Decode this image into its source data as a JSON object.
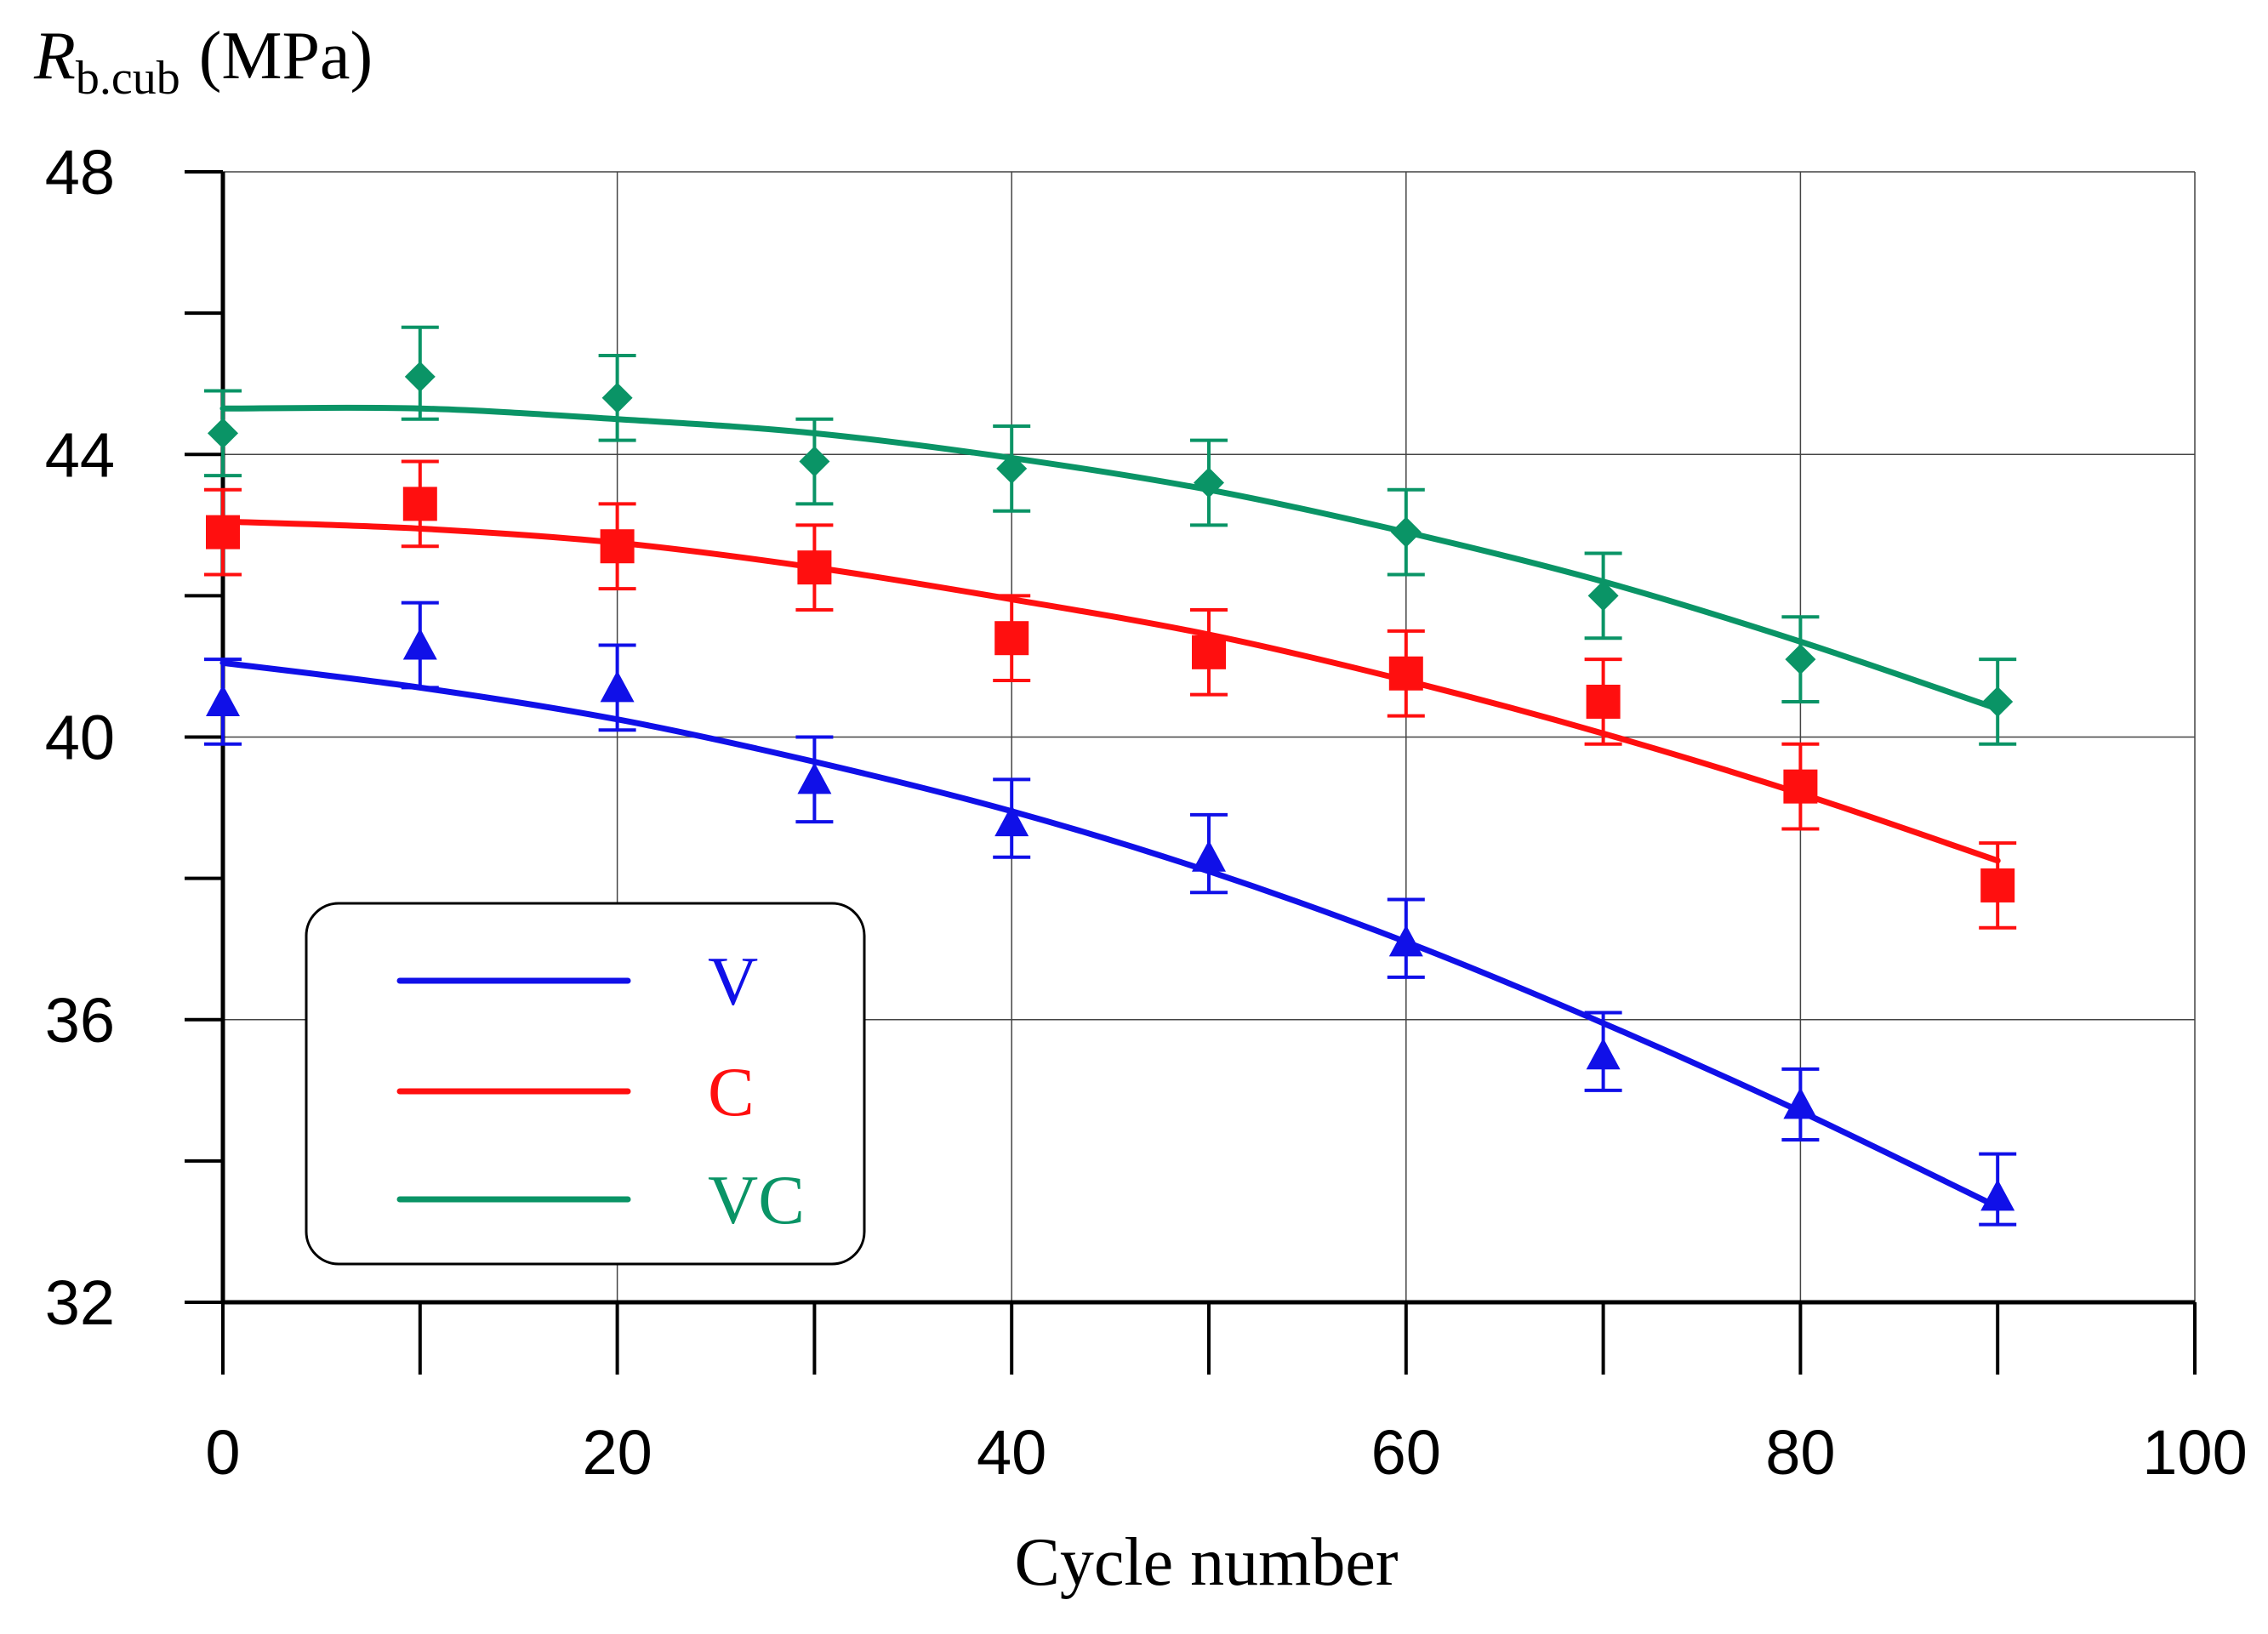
{
  "chart_data": {
    "type": "line",
    "title": "",
    "ylabel": {
      "symbol": "R",
      "subscript": "b.cub",
      "unit": "(MPa)"
    },
    "xlabel": "Cycle number",
    "xlim": [
      0,
      100
    ],
    "ylim": [
      32,
      48
    ],
    "x_ticks": [
      "0",
      "20",
      "40",
      "60",
      "80",
      "100"
    ],
    "y_ticks": [
      "32",
      "36",
      "40",
      "44",
      "48"
    ],
    "grid": true,
    "legend_position": "bottom-left",
    "series": [
      {
        "name": "V",
        "color": "#1010e8",
        "marker": "triangle",
        "x": [
          0,
          10,
          20,
          30,
          40,
          50,
          60,
          70,
          80,
          90
        ],
        "values": [
          40.5,
          41.3,
          40.7,
          39.4,
          38.8,
          38.3,
          37.1,
          35.5,
          34.8,
          33.5
        ],
        "error_low": [
          39.9,
          40.7,
          40.1,
          38.8,
          38.3,
          37.8,
          36.6,
          35.0,
          34.3,
          33.1
        ],
        "error_high": [
          41.1,
          41.9,
          41.3,
          40.0,
          39.4,
          38.9,
          37.7,
          36.1,
          35.3,
          34.1
        ],
        "fit": [
          41.05,
          40.7,
          40.25,
          39.65,
          38.95,
          38.1,
          37.1,
          35.95,
          34.7,
          33.35
        ]
      },
      {
        "name": "C",
        "color": "#ff0f0f",
        "marker": "square",
        "x": [
          0,
          10,
          20,
          30,
          40,
          50,
          60,
          70,
          80,
          90
        ],
        "values": [
          42.9,
          43.3,
          42.7,
          42.4,
          41.4,
          41.2,
          40.9,
          40.5,
          39.3,
          37.9
        ],
        "error_low": [
          42.3,
          42.7,
          42.1,
          41.8,
          40.8,
          40.6,
          40.3,
          39.9,
          38.7,
          37.3
        ],
        "error_high": [
          43.5,
          43.9,
          43.3,
          43.0,
          42.0,
          41.8,
          41.5,
          41.1,
          39.9,
          38.5
        ],
        "fit": [
          43.05,
          42.95,
          42.75,
          42.4,
          41.95,
          41.45,
          40.8,
          40.05,
          39.2,
          38.25
        ]
      },
      {
        "name": "VC",
        "color": "#0a9466",
        "marker": "diamond",
        "x": [
          0,
          10,
          20,
          30,
          40,
          50,
          60,
          70,
          80,
          90
        ],
        "values": [
          44.3,
          45.1,
          44.8,
          43.9,
          43.8,
          43.6,
          42.9,
          42.0,
          41.1,
          40.5
        ],
        "error_low": [
          43.7,
          44.5,
          44.2,
          43.3,
          43.2,
          43.0,
          42.3,
          41.4,
          40.5,
          39.9
        ],
        "error_high": [
          44.9,
          45.8,
          45.4,
          44.5,
          44.4,
          44.2,
          43.5,
          42.6,
          41.7,
          41.1
        ],
        "fit": [
          44.65,
          44.65,
          44.5,
          44.3,
          43.95,
          43.5,
          42.9,
          42.2,
          41.35,
          40.4
        ]
      }
    ]
  }
}
